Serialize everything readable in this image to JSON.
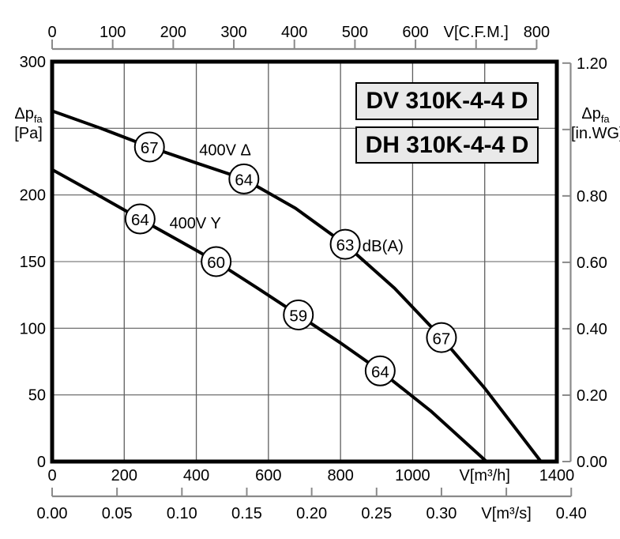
{
  "models": [
    "DV 310K-4-4 D",
    "DH 310K-4-4 D"
  ],
  "axis_labels": {
    "left_symbol": "Δp",
    "left_sub": "fa",
    "left_unit": "[Pa]",
    "right_symbol": "Δp",
    "right_sub": "fa",
    "right_unit": "[in.WG]"
  },
  "colors": {
    "ink": "#000000",
    "grid": "#5f5f5f",
    "secondary_axis": "#8a8a8a",
    "box_bg": "#e9e9e9",
    "background": "#ffffff"
  },
  "chart_data": {
    "type": "line",
    "title": "DV 310K-4-4 D / DH 310K-4-4 D",
    "xlabel": "V[m³/h]",
    "x2label": "V[C.F.M.]",
    "x3label": "V[m³/s]",
    "ylabel": "Δpfa [Pa]",
    "y2label": "Δpfa [in.WG]",
    "xlim": [
      0,
      1400
    ],
    "ylim": [
      0,
      300
    ],
    "x2lim_cfm": [
      0,
      800
    ],
    "x3lim_m3s": [
      0,
      0.4
    ],
    "y2lim_inwg": [
      0,
      1.2
    ],
    "grid": true,
    "grid_x_m3h": [
      200,
      400,
      600,
      800,
      1000,
      1200
    ],
    "grid_y_pa": [
      50,
      100,
      150,
      200,
      250
    ],
    "ticks": {
      "m3h": {
        "values": [
          0,
          200,
          400,
          600,
          800,
          1000,
          1200,
          1400
        ],
        "labels": [
          "0",
          "200",
          "400",
          "600",
          "800",
          "1000",
          "V[m³/h]",
          "1400"
        ]
      },
      "cfm": {
        "values": [
          0,
          100,
          200,
          300,
          400,
          500,
          600,
          700,
          800
        ],
        "labels": [
          "0",
          "100",
          "200",
          "300",
          "400",
          "500",
          "600",
          "V[C.F.M.]",
          "800"
        ]
      },
      "m3s": {
        "values": [
          0,
          0.05,
          0.1,
          0.15,
          0.2,
          0.25,
          0.3,
          0.35,
          0.4
        ],
        "labels": [
          "0.00",
          "0.05",
          "0.10",
          "0.15",
          "0.20",
          "0.25",
          "0.30",
          "V[m³/s]",
          "0.40"
        ]
      },
      "pa": {
        "values": [
          0,
          50,
          100,
          150,
          200,
          250,
          300
        ],
        "labels": [
          "0",
          "50",
          "100",
          "150",
          "200",
          "",
          "300"
        ]
      },
      "inwg": {
        "values": [
          0,
          0.2,
          0.4,
          0.6,
          0.8,
          1.0,
          1.2
        ],
        "labels": [
          "0.00",
          "0.20",
          "0.40",
          "0.60",
          "0.80",
          "",
          "1.20"
        ]
      }
    },
    "noise_unit": "dB(A)",
    "series": [
      {
        "id": "400v-delta",
        "name": "400V Δ",
        "label_at": {
          "x": 480,
          "y": 234
        },
        "points": [
          [
            0,
            263
          ],
          [
            135,
            250
          ],
          [
            270,
            236
          ],
          [
            400,
            224
          ],
          [
            532,
            212
          ],
          [
            675,
            190
          ],
          [
            813,
            163
          ],
          [
            950,
            130
          ],
          [
            1080,
            93
          ],
          [
            1200,
            55
          ],
          [
            1356,
            0
          ]
        ],
        "noise_markers": [
          {
            "x": 270,
            "y": 236,
            "value": "67"
          },
          {
            "x": 532,
            "y": 212,
            "value": "64"
          },
          {
            "x": 813,
            "y": 163,
            "value": "63",
            "suffix": "dB(A)"
          },
          {
            "x": 1080,
            "y": 93,
            "value": "67"
          }
        ]
      },
      {
        "id": "400v-y",
        "name": "400V Y",
        "label_at": {
          "x": 397,
          "y": 179
        },
        "points": [
          [
            0,
            219
          ],
          [
            120,
            201
          ],
          [
            244,
            182
          ],
          [
            350,
            166
          ],
          [
            455,
            150
          ],
          [
            570,
            130
          ],
          [
            683,
            110
          ],
          [
            800,
            89
          ],
          [
            910,
            68
          ],
          [
            1050,
            38
          ],
          [
            1205,
            0
          ]
        ],
        "noise_markers": [
          {
            "x": 244,
            "y": 182,
            "value": "64"
          },
          {
            "x": 455,
            "y": 150,
            "value": "60"
          },
          {
            "x": 683,
            "y": 110,
            "value": "59"
          },
          {
            "x": 910,
            "y": 68,
            "value": "64"
          }
        ]
      }
    ]
  }
}
